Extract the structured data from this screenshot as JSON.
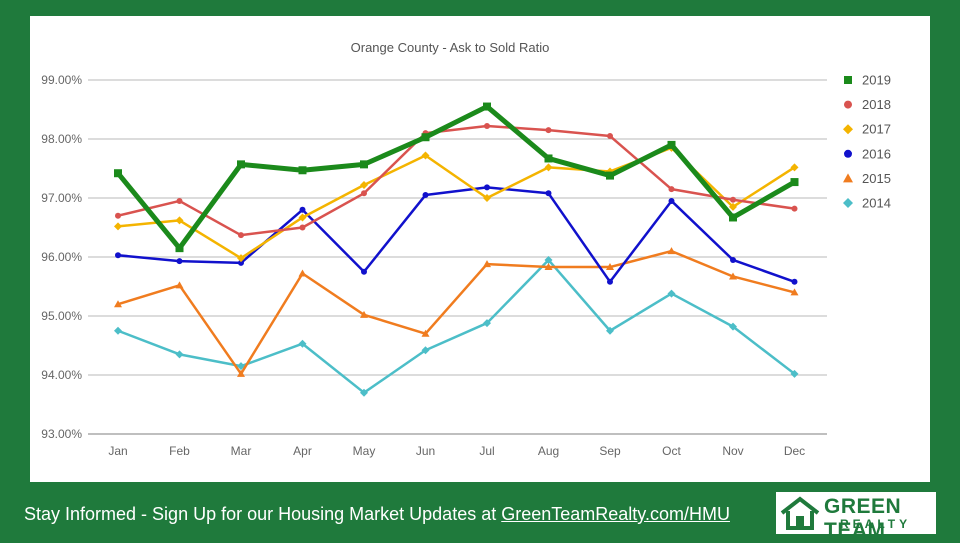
{
  "footer": {
    "text": "Stay Informed - Sign Up for our Housing Market Updates at ",
    "link": "GreenTeamRealty.com/HMU"
  },
  "logo": {
    "name": "GREEN TEAM",
    "sub": "REALTY"
  },
  "colors": {
    "background": "#1f7a3c",
    "panel": "#ffffff"
  },
  "chart_data": {
    "type": "line",
    "title": "Orange County - Ask to Sold Ratio",
    "categories": [
      "Jan",
      "Feb",
      "Mar",
      "Apr",
      "May",
      "Jun",
      "Jul",
      "Aug",
      "Sep",
      "Oct",
      "Nov",
      "Dec"
    ],
    "ylim": [
      93,
      99
    ],
    "yticks": [
      "93.00%",
      "94.00%",
      "95.00%",
      "96.00%",
      "97.00%",
      "98.00%",
      "99.00%"
    ],
    "grid": true,
    "legend_position": "right",
    "series": [
      {
        "name": "2019",
        "color": "#1b8a1b",
        "marker": "square",
        "values": [
          97.42,
          96.15,
          97.57,
          97.47,
          97.57,
          98.03,
          98.55,
          97.67,
          97.38,
          97.9,
          96.67,
          97.27
        ]
      },
      {
        "name": "2018",
        "color": "#d9534f",
        "marker": "circle",
        "values": [
          96.7,
          96.95,
          96.37,
          96.5,
          97.08,
          98.1,
          98.22,
          98.15,
          98.05,
          97.15,
          96.97,
          96.82
        ]
      },
      {
        "name": "2017",
        "color": "#f4b400",
        "marker": "diamond",
        "values": [
          96.52,
          96.62,
          95.98,
          96.67,
          97.22,
          97.72,
          97.0,
          97.52,
          97.45,
          97.85,
          96.85,
          97.52
        ]
      },
      {
        "name": "2016",
        "color": "#1111cc",
        "marker": "circle",
        "values": [
          96.03,
          95.93,
          95.9,
          96.8,
          95.75,
          97.05,
          97.18,
          97.08,
          95.58,
          96.95,
          95.95,
          95.58
        ]
      },
      {
        "name": "2015",
        "color": "#f07c1f",
        "marker": "triangle",
        "values": [
          95.2,
          95.52,
          94.02,
          95.72,
          95.02,
          94.7,
          95.88,
          95.83,
          95.83,
          96.1,
          95.67,
          95.4
        ]
      },
      {
        "name": "2014",
        "color": "#4cbec8",
        "marker": "diamond",
        "values": [
          94.75,
          94.35,
          94.15,
          94.53,
          93.7,
          94.42,
          94.88,
          95.95,
          94.75,
          95.38,
          94.82,
          94.02
        ]
      }
    ]
  }
}
